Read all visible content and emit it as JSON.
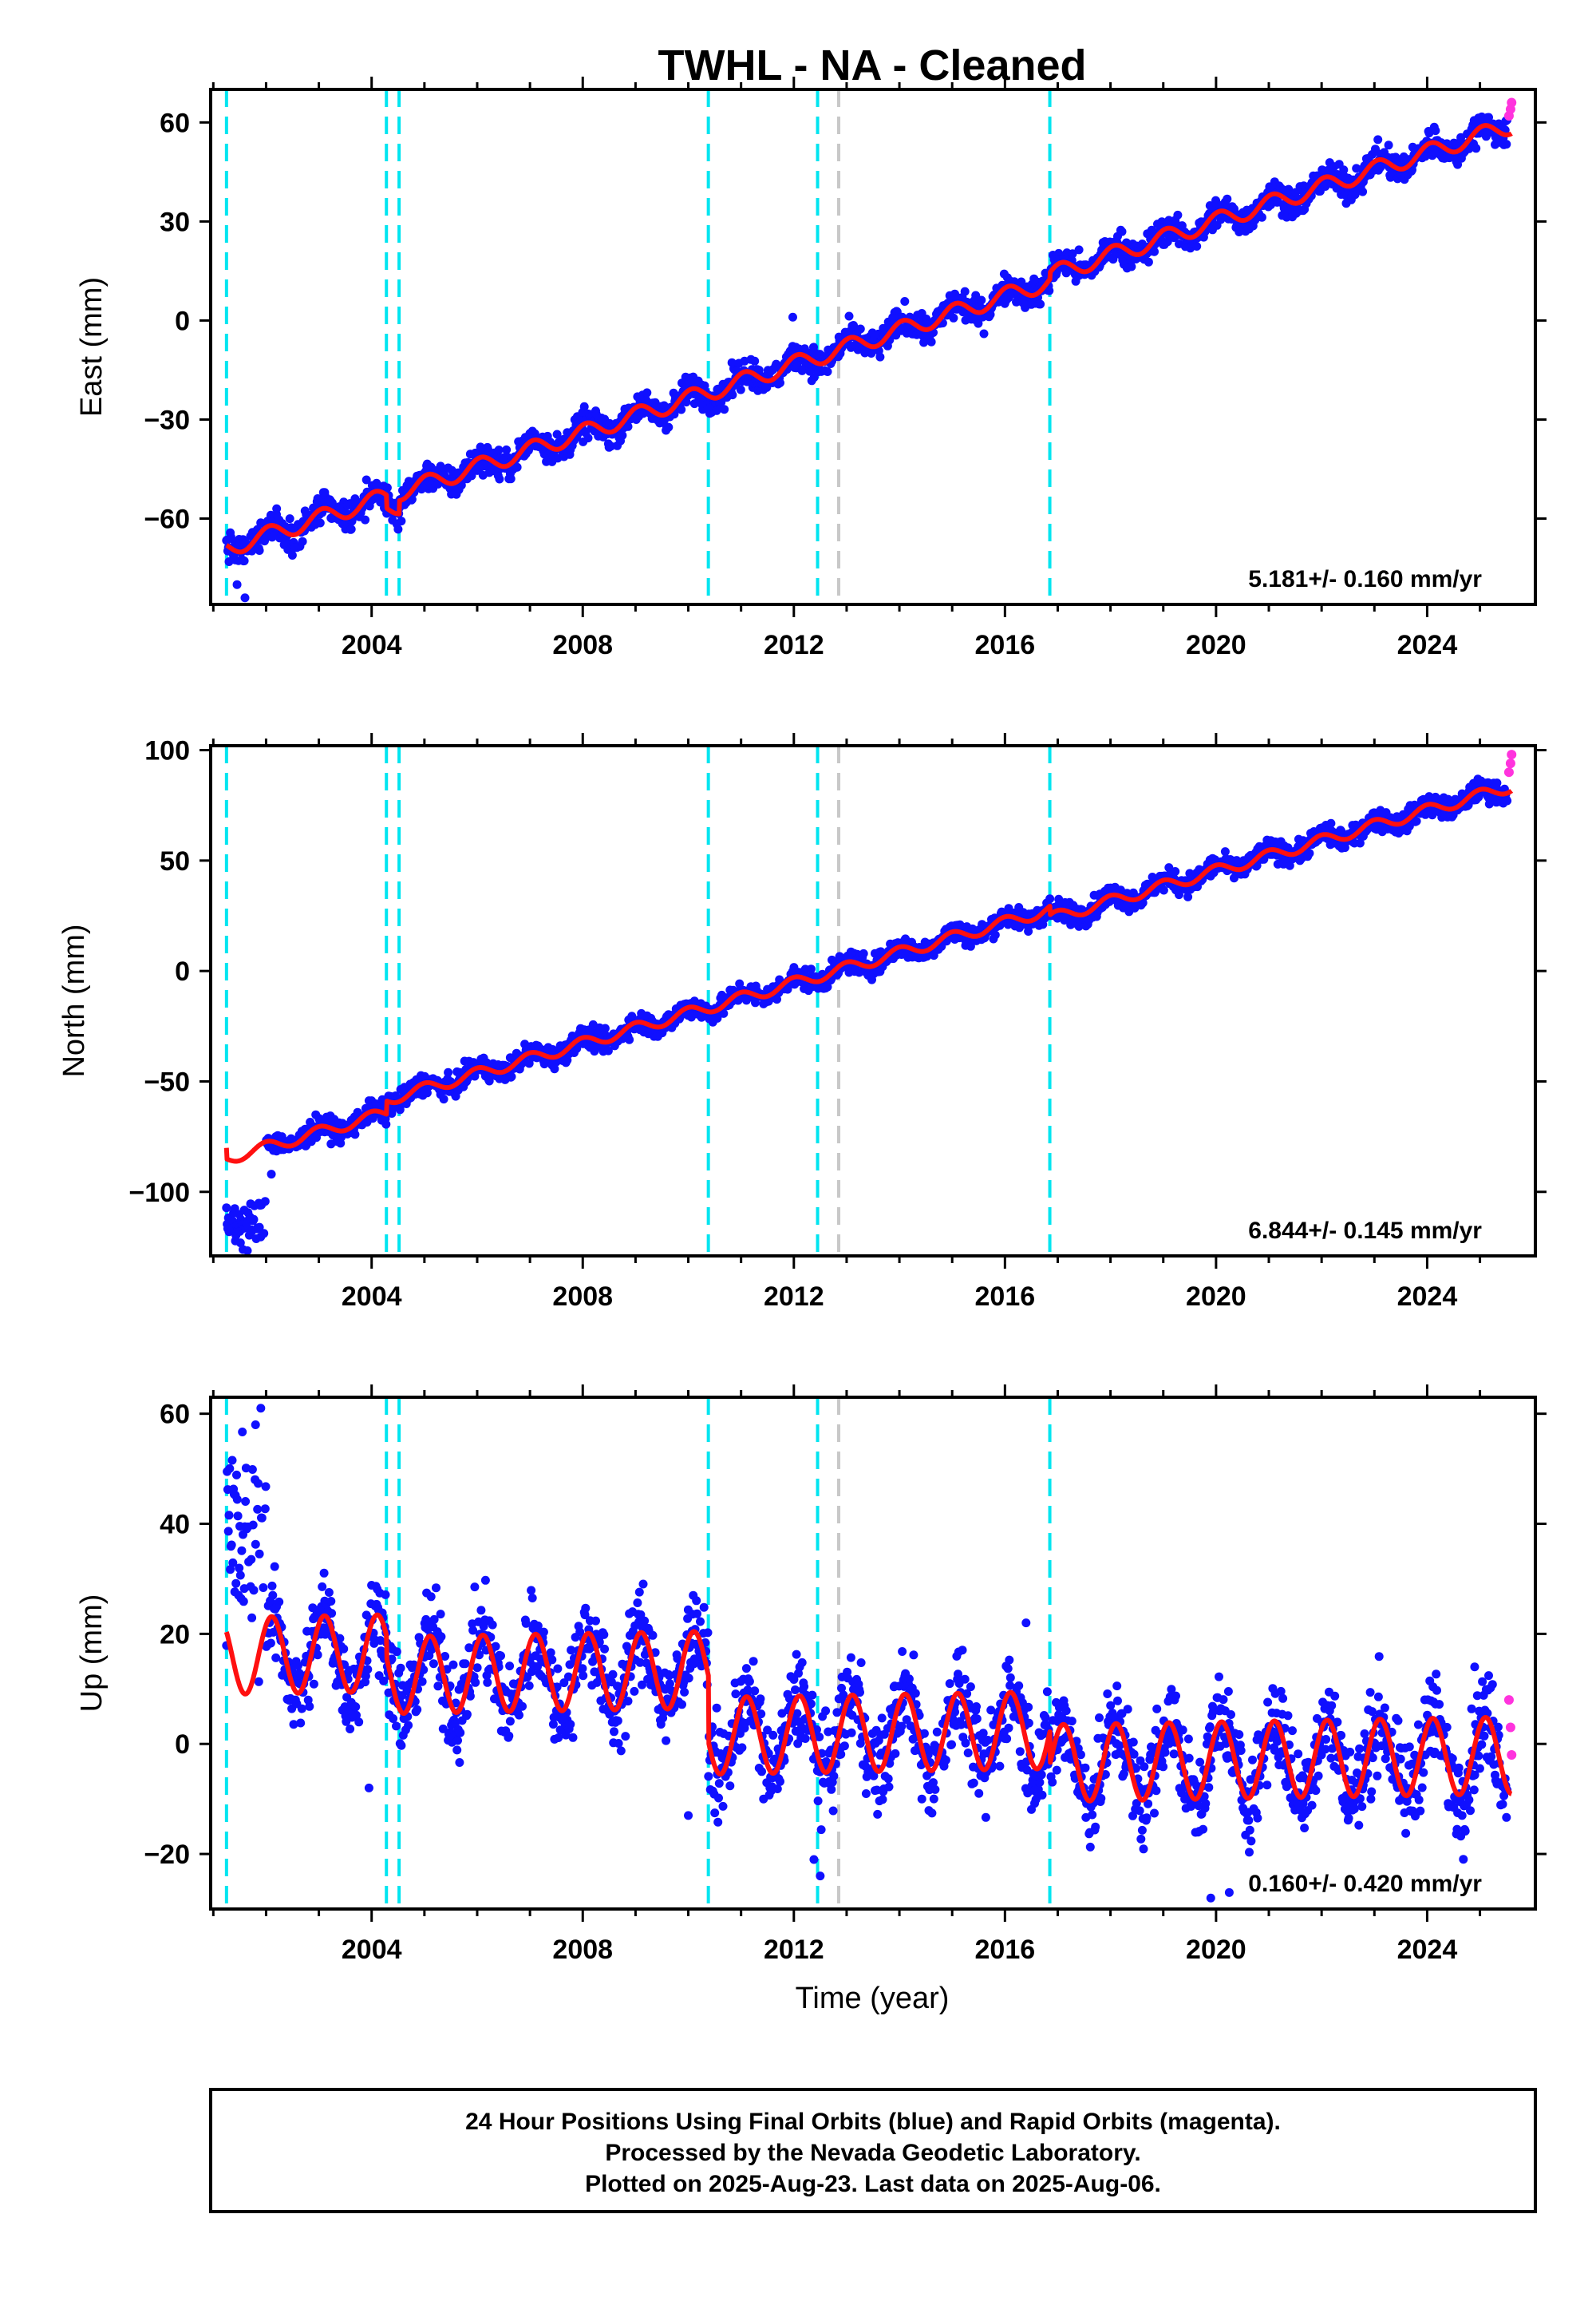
{
  "colors": {
    "final_orbits": "#1010ff",
    "rapid_orbits": "#ff33dd",
    "model_fit": "#ff1010",
    "equipment_change": "#00e5f0",
    "other_event": "#c8c8c8"
  },
  "chart_data": {
    "type": "scatter",
    "title": "TWHL  - NA - Cleaned",
    "xlabel": "Time (year)",
    "xlim": [
      2000.95,
      2026.05
    ],
    "x_ticks": [
      2004,
      2008,
      2012,
      2016,
      2020,
      2024
    ],
    "x_tick_labels": [
      "2004",
      "2008",
      "2012",
      "2016",
      "2020",
      "2024"
    ],
    "event_lines": {
      "equipment_change": [
        2001.25,
        2004.28,
        2004.52,
        2010.38,
        2012.45,
        2016.85
      ],
      "other_event": [
        2012.85
      ]
    },
    "series_legend": {
      "final_orbits": "blue dots",
      "rapid_orbits": "magenta dots",
      "model_fit": "red line"
    },
    "panels": [
      {
        "component": "east",
        "ylabel": "East (mm)",
        "ylim": [
          -86,
          70
        ],
        "y_ticks": [
          -60,
          -30,
          0,
          30,
          60
        ],
        "y_tick_labels": [
          "−60",
          "−30",
          "0",
          "30",
          "60"
        ],
        "rate_text": "5.181+/- 0.160 mm/yr",
        "model": {
          "start_year": 2001.25,
          "start_value": -69,
          "rate_mm_per_yr": 5.181,
          "annual_amplitude": 2.6,
          "annual_phase": 1.2,
          "offsets": [
            [
              2004.28,
              -4
            ],
            [
              2004.52,
              4
            ],
            [
              2016.85,
              2
            ]
          ]
        },
        "noise": 2.2,
        "outliers": [
          [
            2001.45,
            -80
          ],
          [
            2001.6,
            -84
          ],
          [
            2002.2,
            -57
          ],
          [
            2011.98,
            1
          ]
        ],
        "rapid_values": [
          [
            2025.55,
            62
          ],
          [
            2025.58,
            64
          ],
          [
            2025.6,
            66
          ]
        ]
      },
      {
        "component": "north",
        "ylabel": "North (mm)",
        "ylim": [
          -129,
          102
        ],
        "y_ticks": [
          -100,
          -50,
          0,
          50,
          100
        ],
        "y_tick_labels": [
          "−100",
          "−50",
          "0",
          "50",
          "100"
        ],
        "rate_text": "6.844+/- 0.145 mm/yr",
        "model": {
          "start_year": 2001.25,
          "start_value": -80,
          "rate_mm_per_yr": 6.844,
          "annual_amplitude": 2.6,
          "annual_phase": 1.6,
          "offsets": [
            [
              2001.26,
              -5
            ],
            [
              2004.28,
              6
            ],
            [
              2016.85,
              -4
            ]
          ]
        },
        "noise": 2.4,
        "early_cluster": {
          "from": 2001.25,
          "to": 2002.0,
          "center": -115,
          "spread": 5
        },
        "outliers": [
          [
            2002.1,
            -92
          ],
          [
            2002.3,
            -75
          ]
        ],
        "rapid_values": [
          [
            2025.55,
            90
          ],
          [
            2025.58,
            94
          ],
          [
            2025.6,
            98
          ]
        ]
      },
      {
        "component": "up",
        "ylabel": "Up (mm)",
        "ylim": [
          -30,
          63
        ],
        "y_ticks": [
          -20,
          0,
          20,
          40,
          60
        ],
        "y_tick_labels": [
          "−20",
          "0",
          "20",
          "40",
          "60"
        ],
        "rate_text": "0.160+/- 0.420 mm/yr",
        "model": {
          "start_year": 2001.25,
          "start_value": 16,
          "rate_mm_per_yr": 0.16,
          "annual_amplitude": 7,
          "annual_phase": 0.9,
          "offsets": [
            [
              2004.28,
              -4
            ],
            [
              2010.38,
              -12
            ],
            [
              2016.85,
              -6
            ]
          ]
        },
        "noise": 4.2,
        "early_cluster": {
          "from": 2001.25,
          "to": 2002.0,
          "center": 36,
          "spread": 10
        },
        "outliers": [
          [
            2001.9,
            61
          ],
          [
            2001.8,
            58
          ],
          [
            2012.38,
            -21
          ],
          [
            2012.5,
            -24
          ],
          [
            2019.9,
            -28
          ],
          [
            2020.25,
            -27
          ],
          [
            2010.0,
            -13
          ],
          [
            2003.95,
            -8
          ],
          [
            2016.4,
            22
          ],
          [
            2024.9,
            14
          ]
        ],
        "rapid_values": [
          [
            2025.55,
            8
          ],
          [
            2025.58,
            3
          ],
          [
            2025.6,
            -2
          ]
        ]
      }
    ]
  },
  "footer": {
    "line1": "24 Hour Positions Using Final Orbits (blue) and Rapid Orbits (magenta).",
    "line2": "Processed by the Nevada Geodetic Laboratory.",
    "line3": "Plotted on 2025-Aug-23. Last data on 2025-Aug-06."
  }
}
